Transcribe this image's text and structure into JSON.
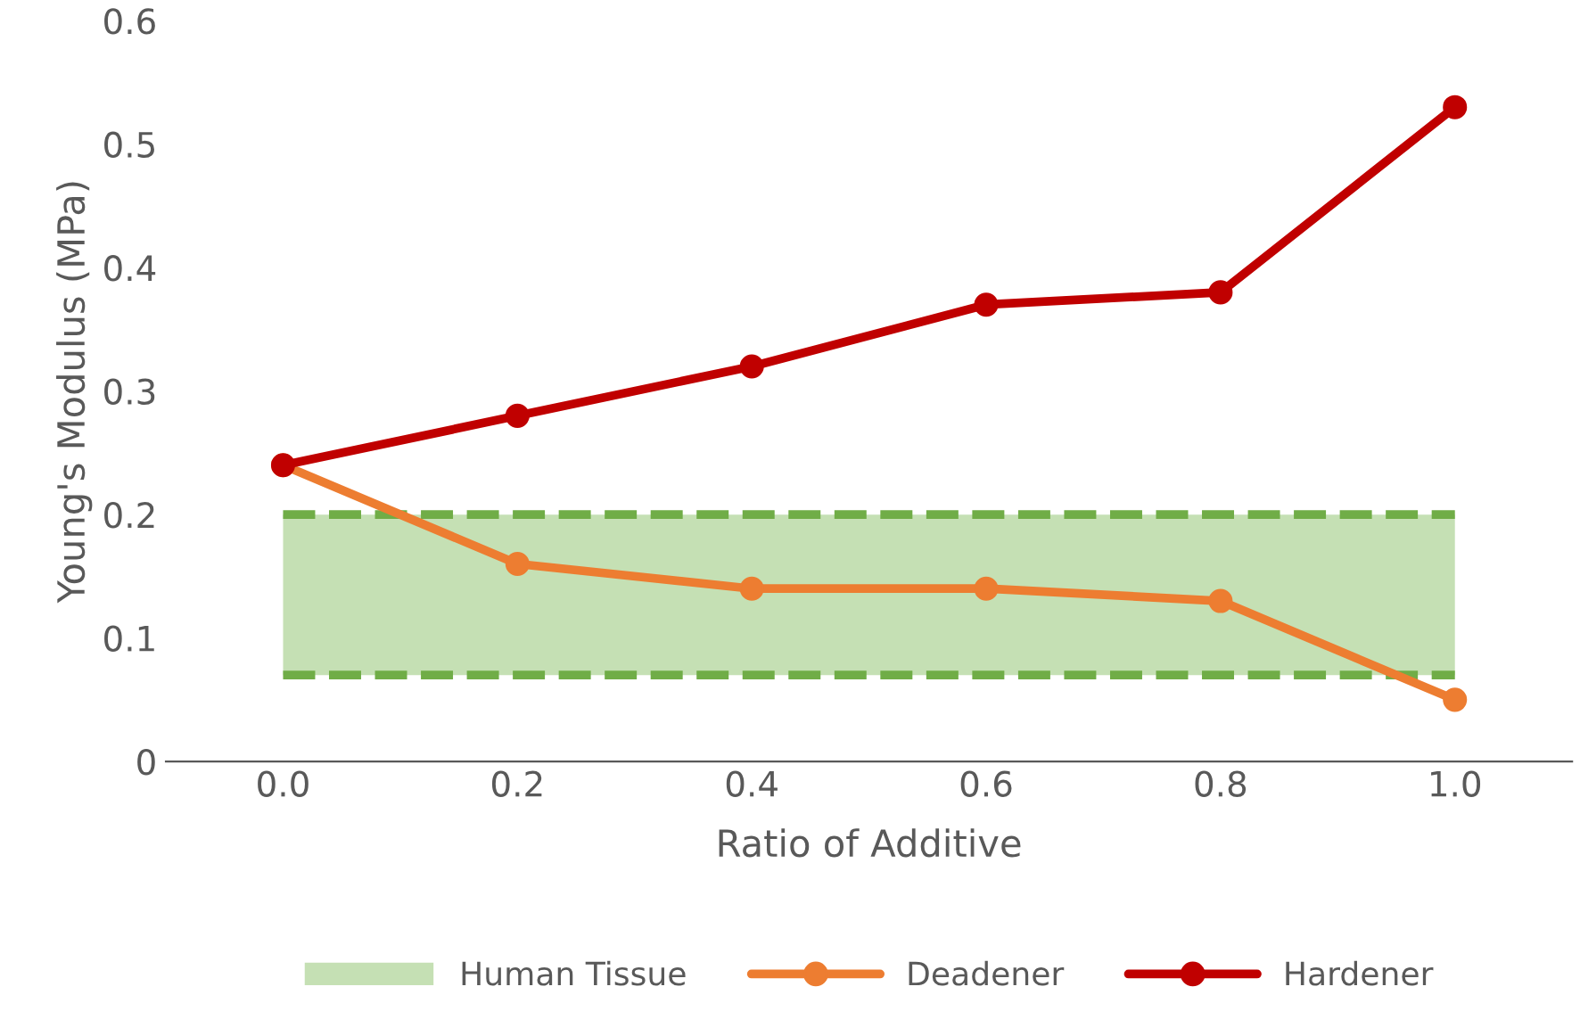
{
  "chart_data": {
    "type": "line",
    "xlabel": "Ratio of Additive",
    "ylabel": "Young's Modulus (MPa)",
    "categories": [
      "0.0",
      "0.2",
      "0.4",
      "0.6",
      "0.8",
      "1.0"
    ],
    "series": [
      {
        "name": "Deadener",
        "color": "#ed7d31",
        "values": [
          0.24,
          0.16,
          0.14,
          0.14,
          0.13,
          0.05
        ]
      },
      {
        "name": "Hardener",
        "color": "#c00000",
        "values": [
          0.24,
          0.28,
          0.32,
          0.37,
          0.38,
          0.53
        ]
      }
    ],
    "bands": [
      {
        "axis": "y",
        "from": 0.07,
        "to": 0.2,
        "label": "Human Tissue",
        "color": "#c5e0b4"
      }
    ],
    "ref_lines": [
      {
        "axis": "y",
        "value": 0.07,
        "color": "#70ad47",
        "line_style": "dashed"
      },
      {
        "axis": "y",
        "value": 0.2,
        "color": "#70ad47",
        "line_style": "dashed"
      }
    ],
    "ylim": [
      0,
      0.6
    ],
    "yticks": [
      0,
      0.1,
      0.2,
      0.3,
      0.4,
      0.5,
      0.6
    ],
    "marker": "circle",
    "line_style": "solid",
    "grid": false,
    "legend": "bottom"
  }
}
